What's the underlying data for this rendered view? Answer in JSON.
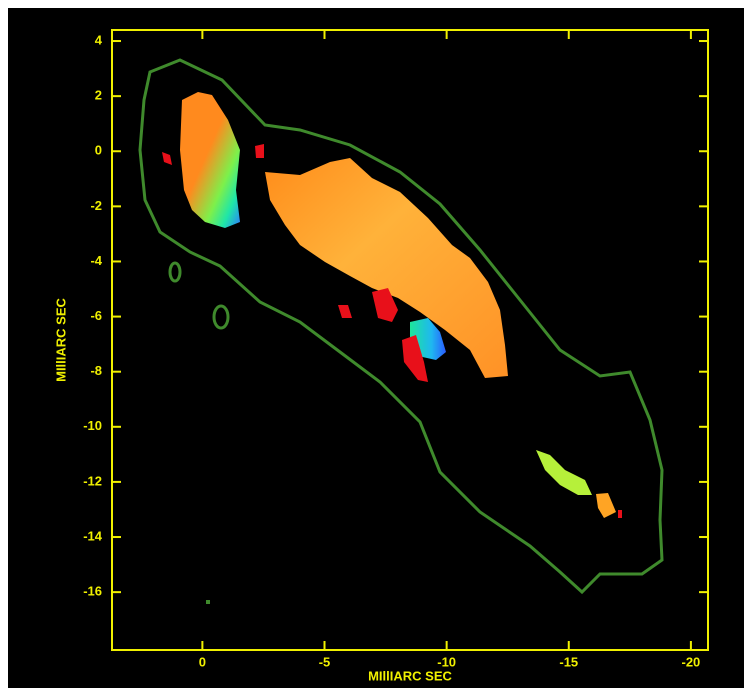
{
  "chart_data": {
    "type": "image",
    "x_label": "MIllIARC SEC",
    "y_label": "MIllIARC SEC",
    "xlim": [
      3.7,
      -20.7
    ],
    "xticks": [
      0,
      -5,
      -10,
      -15,
      -20
    ],
    "ylim": [
      -18.1,
      4.4
    ],
    "yticks": [
      4,
      2,
      0,
      -2,
      -4,
      -6,
      -8,
      -10,
      -12,
      -14,
      -16
    ],
    "axis_color": "#f0f000",
    "contour_color": "#3f8a2c"
  }
}
